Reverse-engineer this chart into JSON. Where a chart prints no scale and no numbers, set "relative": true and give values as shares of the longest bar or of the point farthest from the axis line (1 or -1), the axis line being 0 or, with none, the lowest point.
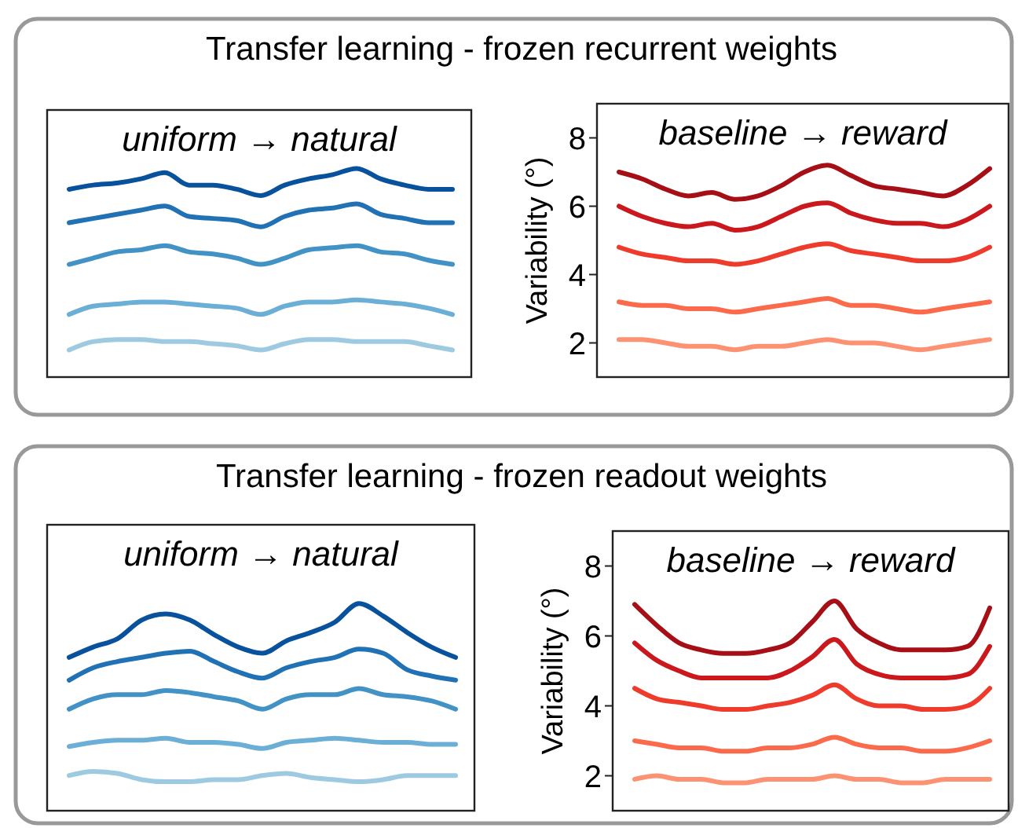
{
  "chart_data": [
    {
      "type": "line",
      "title": "Transfer learning - frozen recurrent weights",
      "relative": true,
      "annotations": [
        "uniform → natural"
      ],
      "categories": [
        null,
        null,
        null,
        null,
        null,
        null,
        null,
        null,
        null,
        null,
        null,
        null,
        null,
        null,
        null,
        null,
        null
      ],
      "series": [
        {
          "color": "#08519c",
          "values": [
            0.9,
            0.92,
            0.93,
            0.95,
            0.98,
            0.92,
            0.92,
            0.9,
            0.87,
            0.92,
            0.95,
            0.97,
            1.0,
            0.95,
            0.92,
            0.9,
            0.9
          ]
        },
        {
          "color": "#2171b5",
          "values": [
            0.74,
            0.76,
            0.78,
            0.8,
            0.82,
            0.77,
            0.76,
            0.75,
            0.72,
            0.77,
            0.8,
            0.81,
            0.83,
            0.78,
            0.76,
            0.74,
            0.74
          ]
        },
        {
          "color": "#4292c6",
          "values": [
            0.54,
            0.57,
            0.6,
            0.61,
            0.63,
            0.6,
            0.59,
            0.57,
            0.54,
            0.57,
            0.61,
            0.62,
            0.63,
            0.6,
            0.59,
            0.56,
            0.54
          ]
        },
        {
          "color": "#6baed6",
          "values": [
            0.3,
            0.34,
            0.35,
            0.36,
            0.36,
            0.35,
            0.34,
            0.33,
            0.3,
            0.34,
            0.36,
            0.36,
            0.37,
            0.36,
            0.35,
            0.33,
            0.3
          ]
        },
        {
          "color": "#9ecae1",
          "values": [
            0.13,
            0.17,
            0.18,
            0.18,
            0.17,
            0.17,
            0.16,
            0.15,
            0.13,
            0.16,
            0.18,
            0.18,
            0.17,
            0.17,
            0.17,
            0.15,
            0.13
          ]
        }
      ]
    },
    {
      "type": "line",
      "ylabel": "Variability (°)",
      "annotations": [
        "baseline → reward"
      ],
      "categories": [
        null,
        null,
        null,
        null,
        null,
        null,
        null,
        null,
        null,
        null,
        null,
        null,
        null,
        null,
        null,
        null,
        null
      ],
      "ylim": [
        1,
        9
      ],
      "yticks": [
        2,
        4,
        6,
        8
      ],
      "series": [
        {
          "color": "#a50f15",
          "values": [
            7.0,
            6.8,
            6.5,
            6.3,
            6.4,
            6.2,
            6.3,
            6.6,
            7.0,
            7.2,
            6.9,
            6.6,
            6.5,
            6.4,
            6.3,
            6.6,
            7.1
          ]
        },
        {
          "color": "#cb181d",
          "values": [
            6.0,
            5.7,
            5.5,
            5.4,
            5.5,
            5.3,
            5.4,
            5.7,
            6.0,
            6.1,
            5.8,
            5.6,
            5.5,
            5.5,
            5.4,
            5.6,
            6.0
          ]
        },
        {
          "color": "#ef3b2c",
          "values": [
            4.8,
            4.6,
            4.5,
            4.4,
            4.4,
            4.3,
            4.4,
            4.6,
            4.8,
            4.9,
            4.7,
            4.6,
            4.5,
            4.4,
            4.4,
            4.5,
            4.8
          ]
        },
        {
          "color": "#fb6a4a",
          "values": [
            3.2,
            3.1,
            3.1,
            3.0,
            3.0,
            2.9,
            3.0,
            3.1,
            3.2,
            3.3,
            3.1,
            3.1,
            3.0,
            2.9,
            3.0,
            3.1,
            3.2
          ]
        },
        {
          "color": "#fc9272",
          "values": [
            2.1,
            2.1,
            2.0,
            1.9,
            1.9,
            1.8,
            1.9,
            1.9,
            2.0,
            2.1,
            2.0,
            2.0,
            1.9,
            1.8,
            1.9,
            2.0,
            2.1
          ]
        }
      ]
    },
    {
      "type": "line",
      "title": "Transfer learning - frozen readout weights",
      "relative": true,
      "annotations": [
        "uniform → natural"
      ],
      "categories": [
        null,
        null,
        null,
        null,
        null,
        null,
        null,
        null,
        null,
        null,
        null,
        null,
        null,
        null,
        null,
        null,
        null
      ],
      "series": [
        {
          "color": "#08519c",
          "values": [
            0.74,
            0.79,
            0.83,
            0.92,
            0.95,
            0.92,
            0.85,
            0.79,
            0.76,
            0.82,
            0.86,
            0.91,
            1.0,
            0.94,
            0.86,
            0.79,
            0.74
          ]
        },
        {
          "color": "#2171b5",
          "values": [
            0.63,
            0.69,
            0.72,
            0.74,
            0.76,
            0.77,
            0.72,
            0.67,
            0.64,
            0.69,
            0.72,
            0.74,
            0.78,
            0.76,
            0.68,
            0.65,
            0.63
          ]
        },
        {
          "color": "#4292c6",
          "values": [
            0.49,
            0.54,
            0.56,
            0.56,
            0.58,
            0.57,
            0.55,
            0.53,
            0.49,
            0.54,
            0.56,
            0.56,
            0.59,
            0.56,
            0.55,
            0.53,
            0.49
          ]
        },
        {
          "color": "#6baed6",
          "values": [
            0.31,
            0.33,
            0.34,
            0.34,
            0.35,
            0.33,
            0.33,
            0.32,
            0.3,
            0.33,
            0.34,
            0.35,
            0.34,
            0.33,
            0.33,
            0.32,
            0.32
          ]
        },
        {
          "color": "#9ecae1",
          "values": [
            0.17,
            0.19,
            0.18,
            0.15,
            0.14,
            0.14,
            0.15,
            0.15,
            0.17,
            0.18,
            0.16,
            0.15,
            0.14,
            0.15,
            0.17,
            0.17,
            0.17
          ]
        }
      ]
    },
    {
      "type": "line",
      "ylabel": "Variability (°)",
      "annotations": [
        "baseline → reward"
      ],
      "categories": [
        null,
        null,
        null,
        null,
        null,
        null,
        null,
        null,
        null,
        null,
        null,
        null,
        null,
        null,
        null,
        null,
        null
      ],
      "ylim": [
        1,
        9
      ],
      "yticks": [
        2,
        4,
        6,
        8
      ],
      "series": [
        {
          "color": "#a50f15",
          "values": [
            6.9,
            6.3,
            5.8,
            5.6,
            5.5,
            5.5,
            5.6,
            5.8,
            6.4,
            7.0,
            6.2,
            5.8,
            5.6,
            5.6,
            5.6,
            5.7,
            6.8
          ]
        },
        {
          "color": "#cb181d",
          "values": [
            5.8,
            5.3,
            5.0,
            4.8,
            4.8,
            4.8,
            4.8,
            5.0,
            5.4,
            5.9,
            5.2,
            4.9,
            4.8,
            4.8,
            4.8,
            4.9,
            5.7
          ]
        },
        {
          "color": "#ef3b2c",
          "values": [
            4.5,
            4.2,
            4.1,
            4.0,
            3.9,
            3.9,
            4.0,
            4.1,
            4.3,
            4.6,
            4.2,
            4.0,
            4.0,
            3.9,
            3.9,
            4.0,
            4.5
          ]
        },
        {
          "color": "#fb6a4a",
          "values": [
            3.0,
            2.9,
            2.8,
            2.8,
            2.7,
            2.7,
            2.8,
            2.8,
            2.9,
            3.1,
            2.9,
            2.8,
            2.8,
            2.7,
            2.7,
            2.8,
            3.0
          ]
        },
        {
          "color": "#fc9272",
          "values": [
            1.9,
            2.0,
            1.9,
            1.9,
            1.8,
            1.8,
            1.9,
            1.9,
            1.9,
            2.0,
            1.9,
            1.9,
            1.8,
            1.8,
            1.9,
            1.9,
            1.9
          ]
        }
      ]
    }
  ]
}
